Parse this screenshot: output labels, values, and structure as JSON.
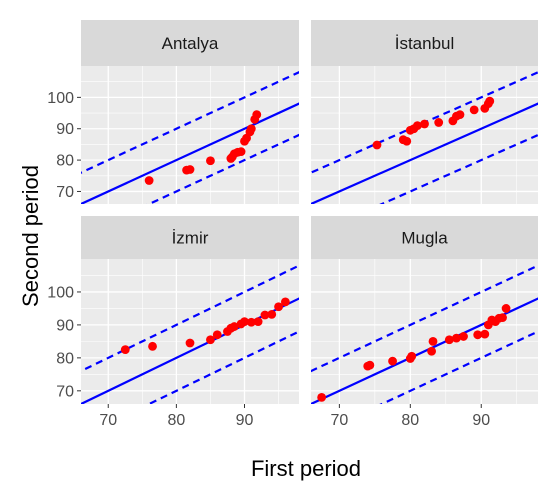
{
  "chart_data": {
    "type": "scatter",
    "xlabel": "First period",
    "ylabel": "Second period",
    "x_ticks": [
      "70",
      "80",
      "90"
    ],
    "y_ticks": [
      "70",
      "80",
      "90",
      "100"
    ],
    "xlim": [
      66,
      98
    ],
    "ylim": [
      66,
      110
    ],
    "grid": true,
    "reference_lines": {
      "identity": {
        "slope": 1,
        "intercept": 0,
        "style": "solid"
      },
      "upper_band": {
        "slope": 1,
        "intercept": 10,
        "style": "dashed"
      },
      "lower_band": {
        "slope": 1,
        "intercept": -10,
        "style": "dashed"
      }
    },
    "colors": {
      "points": "#ff0000",
      "lines": "#0000ff",
      "panel_background": "#ebebeb",
      "strip_background": "#d9d9d9",
      "grid": "#ffffff"
    },
    "facets": [
      {
        "name": "Antalya",
        "points": [
          {
            "x": 76,
            "y": 73.5
          },
          {
            "x": 82,
            "y": 77
          },
          {
            "x": 81.5,
            "y": 76.8
          },
          {
            "x": 85,
            "y": 79.8
          },
          {
            "x": 88,
            "y": 80.5
          },
          {
            "x": 88.2,
            "y": 81
          },
          {
            "x": 88.5,
            "y": 82
          },
          {
            "x": 89,
            "y": 82.5
          },
          {
            "x": 89.5,
            "y": 82.7
          },
          {
            "x": 90,
            "y": 86
          },
          {
            "x": 90.3,
            "y": 87
          },
          {
            "x": 90.8,
            "y": 89
          },
          {
            "x": 91,
            "y": 90
          },
          {
            "x": 91.5,
            "y": 93
          },
          {
            "x": 91.8,
            "y": 94.5
          }
        ]
      },
      {
        "name": "İstanbul",
        "points": [
          {
            "x": 75.3,
            "y": 84.8
          },
          {
            "x": 79,
            "y": 86.5
          },
          {
            "x": 79.5,
            "y": 86
          },
          {
            "x": 80,
            "y": 89.5
          },
          {
            "x": 80.5,
            "y": 90
          },
          {
            "x": 81,
            "y": 91
          },
          {
            "x": 82,
            "y": 91.5
          },
          {
            "x": 84,
            "y": 92
          },
          {
            "x": 86,
            "y": 92.5
          },
          {
            "x": 86.5,
            "y": 94
          },
          {
            "x": 87,
            "y": 94.5
          },
          {
            "x": 89,
            "y": 96
          },
          {
            "x": 90.5,
            "y": 96.5
          },
          {
            "x": 91,
            "y": 98
          },
          {
            "x": 91.2,
            "y": 98.8
          }
        ]
      },
      {
        "name": "İzmir",
        "points": [
          {
            "x": 72.5,
            "y": 82.5
          },
          {
            "x": 76.5,
            "y": 83.5
          },
          {
            "x": 82,
            "y": 84.5
          },
          {
            "x": 85,
            "y": 85.5
          },
          {
            "x": 86,
            "y": 87
          },
          {
            "x": 87.5,
            "y": 88
          },
          {
            "x": 88,
            "y": 89
          },
          {
            "x": 88.5,
            "y": 89.5
          },
          {
            "x": 89.5,
            "y": 90.3
          },
          {
            "x": 90,
            "y": 91
          },
          {
            "x": 91,
            "y": 90.8
          },
          {
            "x": 92,
            "y": 91
          },
          {
            "x": 93,
            "y": 93
          },
          {
            "x": 94,
            "y": 93.2
          },
          {
            "x": 95,
            "y": 95.5
          },
          {
            "x": 96,
            "y": 97
          }
        ]
      },
      {
        "name": "Mugla",
        "points": [
          {
            "x": 67.5,
            "y": 68
          },
          {
            "x": 74,
            "y": 77.5
          },
          {
            "x": 74.3,
            "y": 77.8
          },
          {
            "x": 77.5,
            "y": 79
          },
          {
            "x": 80,
            "y": 79.8
          },
          {
            "x": 80.2,
            "y": 80.5
          },
          {
            "x": 83,
            "y": 82
          },
          {
            "x": 83.2,
            "y": 85
          },
          {
            "x": 85.5,
            "y": 85.5
          },
          {
            "x": 86.5,
            "y": 86
          },
          {
            "x": 87.5,
            "y": 86.5
          },
          {
            "x": 89.5,
            "y": 87
          },
          {
            "x": 90.5,
            "y": 87.2
          },
          {
            "x": 91,
            "y": 90
          },
          {
            "x": 91.5,
            "y": 91.5
          },
          {
            "x": 92,
            "y": 91
          },
          {
            "x": 92.5,
            "y": 92
          },
          {
            "x": 93,
            "y": 92.2
          },
          {
            "x": 93.5,
            "y": 95
          }
        ]
      }
    ]
  }
}
